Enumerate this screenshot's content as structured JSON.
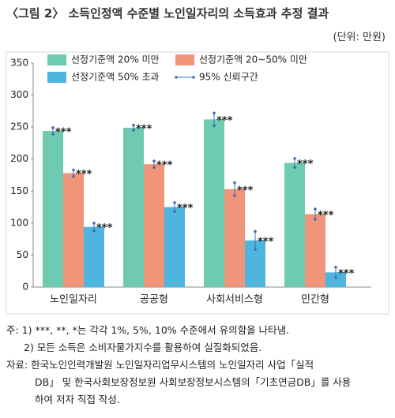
{
  "title": "〈그림 2〉 소득인정액 수준별 노인일자리의 소득효과 추정 결과",
  "unit": "(단위: 만원)",
  "chart_data": {
    "type": "bar",
    "categories": [
      "노인일자리",
      "공공형",
      "사회서비스형",
      "민간형"
    ],
    "series": [
      {
        "name": "선정기준액 20% 미만",
        "color": "#6fcab2",
        "values": [
          244,
          249,
          262,
          194
        ],
        "errors": [
          5,
          4,
          10,
          7
        ],
        "significance": [
          "***",
          "***",
          "***",
          "***"
        ]
      },
      {
        "name": "선정기준액 20~50% 미만",
        "color": "#f0957a",
        "values": [
          178,
          192,
          153,
          114
        ],
        "errors": [
          5,
          5,
          10,
          8
        ],
        "significance": [
          "***",
          "***",
          "***",
          "***"
        ]
      },
      {
        "name": "선정기준액 50% 초과",
        "color": "#4db5de",
        "values": [
          94,
          125,
          73,
          23
        ],
        "errors": [
          6,
          7,
          14,
          8
        ],
        "significance": [
          "***",
          "***",
          "***",
          "***"
        ]
      }
    ],
    "error_label": "95% 신뢰구간",
    "error_color": "#3f6fb0",
    "ylim": [
      0,
      350
    ],
    "yticks": [
      0,
      50,
      100,
      150,
      200,
      250,
      300,
      350
    ]
  },
  "notes": {
    "lines": [
      "주: 1) ***, **, *는 각각 1%, 5%, 10% 수준에서 유의함을 나타냄.",
      "2) 모든 소득은 소비자물가지수를 활용하여 실질화되었음.",
      "자료: 한국노인인력개발원 노인일자리업무시스템의 노인일자리 사업「실적",
      "DB」 및 한국사회보장정보원 사회보장정보시스템의「기초연금DB」를 사용",
      "하여 저자 직접 작성."
    ]
  }
}
